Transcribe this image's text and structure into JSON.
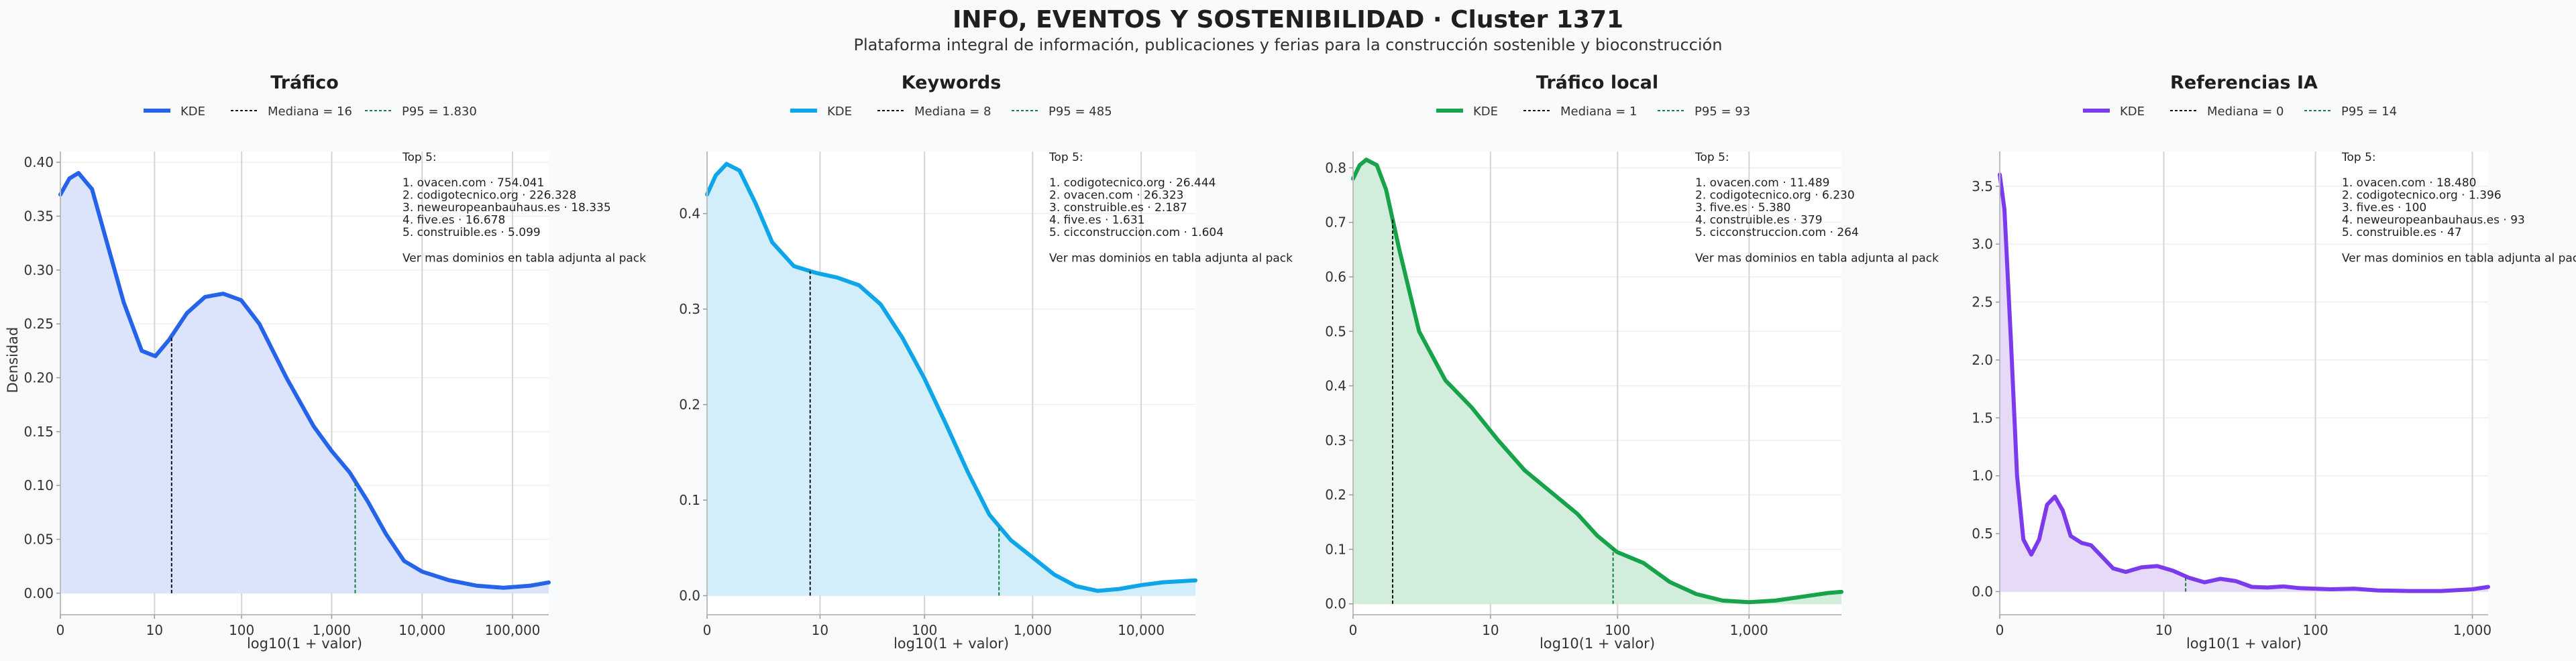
{
  "title": "INFO, EVENTOS Y SOSTENIBILIDAD · Cluster 1371",
  "subtitle": "Plataforma integral de información, publicaciones y ferias para la construcción sostenible y bioconstrucción",
  "ylabel_shared": "Densidad",
  "xlabel_shared": "log10(1 + valor)",
  "colors": {
    "trafico": "#2563eb",
    "keywords": "#0ea5e9",
    "trafico_local": "#16a34a",
    "referencias_ia": "#7c3aed",
    "median_line": "#111111",
    "p95_line": "#15803d",
    "grid": "#d4d4d4"
  },
  "chart_data": [
    {
      "type": "area",
      "title": "Tráfico",
      "legend": {
        "kde": "KDE",
        "median": "Mediana = 16",
        "p95": "P95 = 1.830",
        "placement": "top-center"
      },
      "xlabel": "log10(1 + valor)",
      "ylabel": "Densidad",
      "xlim": [
        0,
        5.4
      ],
      "ylim": [
        -0.02,
        0.41
      ],
      "xticks": [
        {
          "v": 0,
          "l": "0"
        },
        {
          "v": 1.041,
          "l": "10"
        },
        {
          "v": 2.004,
          "l": "100"
        },
        {
          "v": 3.0,
          "l": "1,000"
        },
        {
          "v": 4.0,
          "l": "10,000"
        },
        {
          "v": 5.0,
          "l": "100,000"
        }
      ],
      "yticks": [
        {
          "v": 0,
          "l": "0.00"
        },
        {
          "v": 0.05,
          "l": "0.05"
        },
        {
          "v": 0.1,
          "l": "0.10"
        },
        {
          "v": 0.15,
          "l": "0.15"
        },
        {
          "v": 0.2,
          "l": "0.20"
        },
        {
          "v": 0.25,
          "l": "0.25"
        },
        {
          "v": 0.3,
          "l": "0.30"
        },
        {
          "v": 0.35,
          "l": "0.35"
        },
        {
          "v": 0.4,
          "l": "0.40"
        }
      ],
      "median_x": 1.23,
      "p95_x": 3.26,
      "kde": [
        [
          0,
          0.37
        ],
        [
          0.1,
          0.385
        ],
        [
          0.2,
          0.39
        ],
        [
          0.35,
          0.375
        ],
        [
          0.5,
          0.33
        ],
        [
          0.7,
          0.27
        ],
        [
          0.9,
          0.225
        ],
        [
          1.05,
          0.22
        ],
        [
          1.2,
          0.235
        ],
        [
          1.4,
          0.26
        ],
        [
          1.6,
          0.275
        ],
        [
          1.8,
          0.278
        ],
        [
          2.0,
          0.272
        ],
        [
          2.2,
          0.25
        ],
        [
          2.5,
          0.2
        ],
        [
          2.8,
          0.155
        ],
        [
          3.0,
          0.132
        ],
        [
          3.2,
          0.112
        ],
        [
          3.4,
          0.085
        ],
        [
          3.6,
          0.055
        ],
        [
          3.8,
          0.03
        ],
        [
          4.0,
          0.02
        ],
        [
          4.3,
          0.012
        ],
        [
          4.6,
          0.007
        ],
        [
          4.9,
          0.005
        ],
        [
          5.2,
          0.007
        ],
        [
          5.4,
          0.01
        ]
      ],
      "top5": {
        "heading": "Top 5:",
        "items": [
          "1. ovacen.com · 754.041",
          "2. codigotecnico.org · 226.328",
          "3. neweuropeanbauhaus.es · 18.335",
          "4. five.es · 16.678",
          "5. construible.es · 5.099"
        ],
        "footer": "Ver mas dominios en tabla adjunta al pack"
      }
    },
    {
      "type": "area",
      "title": "Keywords",
      "legend": {
        "kde": "KDE",
        "median": "Mediana = 8",
        "p95": "P95 = 485",
        "placement": "top-center"
      },
      "xlabel": "log10(1 + valor)",
      "ylabel": "",
      "xlim": [
        0,
        4.5
      ],
      "ylim": [
        -0.02,
        0.465
      ],
      "xticks": [
        {
          "v": 0,
          "l": "0"
        },
        {
          "v": 1.041,
          "l": "10"
        },
        {
          "v": 2.004,
          "l": "100"
        },
        {
          "v": 3.0,
          "l": "1,000"
        },
        {
          "v": 4.0,
          "l": "10,000"
        }
      ],
      "yticks": [
        {
          "v": 0,
          "l": "0.0"
        },
        {
          "v": 0.1,
          "l": "0.1"
        },
        {
          "v": 0.2,
          "l": "0.2"
        },
        {
          "v": 0.3,
          "l": "0.3"
        },
        {
          "v": 0.4,
          "l": "0.4"
        }
      ],
      "median_x": 0.95,
      "p95_x": 2.69,
      "kde": [
        [
          0,
          0.42
        ],
        [
          0.08,
          0.44
        ],
        [
          0.18,
          0.452
        ],
        [
          0.3,
          0.445
        ],
        [
          0.45,
          0.41
        ],
        [
          0.6,
          0.37
        ],
        [
          0.8,
          0.345
        ],
        [
          1.0,
          0.338
        ],
        [
          1.2,
          0.333
        ],
        [
          1.4,
          0.325
        ],
        [
          1.6,
          0.305
        ],
        [
          1.8,
          0.27
        ],
        [
          2.0,
          0.228
        ],
        [
          2.2,
          0.18
        ],
        [
          2.4,
          0.13
        ],
        [
          2.6,
          0.085
        ],
        [
          2.8,
          0.058
        ],
        [
          3.0,
          0.04
        ],
        [
          3.2,
          0.022
        ],
        [
          3.4,
          0.01
        ],
        [
          3.6,
          0.005
        ],
        [
          3.8,
          0.007
        ],
        [
          4.0,
          0.011
        ],
        [
          4.2,
          0.014
        ],
        [
          4.5,
          0.016
        ]
      ],
      "top5": {
        "heading": "Top 5:",
        "items": [
          "1. codigotecnico.org · 26.444",
          "2. ovacen.com · 26.323",
          "3. construible.es · 2.187",
          "4. five.es · 1.631",
          "5. cicconstruccion.com · 1.604"
        ],
        "footer": "Ver mas dominios en tabla adjunta al pack"
      }
    },
    {
      "type": "area",
      "title": "Tráfico local",
      "legend": {
        "kde": "KDE",
        "median": "Mediana = 1",
        "p95": "P95 = 93",
        "placement": "top-center"
      },
      "xlabel": "log10(1 + valor)",
      "ylabel": "",
      "xlim": [
        0,
        3.7
      ],
      "ylim": [
        -0.02,
        0.83
      ],
      "xticks": [
        {
          "v": 0,
          "l": "0"
        },
        {
          "v": 1.041,
          "l": "10"
        },
        {
          "v": 2.004,
          "l": "100"
        },
        {
          "v": 3.0,
          "l": "1,000"
        }
      ],
      "yticks": [
        {
          "v": 0,
          "l": "0.0"
        },
        {
          "v": 0.1,
          "l": "0.1"
        },
        {
          "v": 0.2,
          "l": "0.2"
        },
        {
          "v": 0.3,
          "l": "0.3"
        },
        {
          "v": 0.4,
          "l": "0.4"
        },
        {
          "v": 0.5,
          "l": "0.5"
        },
        {
          "v": 0.6,
          "l": "0.6"
        },
        {
          "v": 0.7,
          "l": "0.7"
        },
        {
          "v": 0.8,
          "l": "0.8"
        }
      ],
      "median_x": 0.3,
      "p95_x": 1.97,
      "kde": [
        [
          0,
          0.78
        ],
        [
          0.05,
          0.805
        ],
        [
          0.1,
          0.815
        ],
        [
          0.18,
          0.805
        ],
        [
          0.25,
          0.76
        ],
        [
          0.35,
          0.65
        ],
        [
          0.5,
          0.5
        ],
        [
          0.7,
          0.41
        ],
        [
          0.9,
          0.36
        ],
        [
          1.1,
          0.3
        ],
        [
          1.3,
          0.245
        ],
        [
          1.5,
          0.205
        ],
        [
          1.7,
          0.165
        ],
        [
          1.85,
          0.125
        ],
        [
          2.0,
          0.095
        ],
        [
          2.2,
          0.075
        ],
        [
          2.4,
          0.04
        ],
        [
          2.6,
          0.018
        ],
        [
          2.8,
          0.006
        ],
        [
          3.0,
          0.003
        ],
        [
          3.2,
          0.006
        ],
        [
          3.4,
          0.013
        ],
        [
          3.6,
          0.02
        ],
        [
          3.7,
          0.022
        ]
      ],
      "top5": {
        "heading": "Top 5:",
        "items": [
          "1. ovacen.com · 11.489",
          "2. codigotecnico.org · 6.230",
          "3. five.es · 5.380",
          "4. construible.es · 379",
          "5. cicconstruccion.com · 264"
        ],
        "footer": "Ver mas dominios en tabla adjunta al pack"
      }
    },
    {
      "type": "area",
      "title": "Referencias IA",
      "legend": {
        "kde": "KDE",
        "median": "Mediana = 0",
        "p95": "P95 = 14",
        "placement": "top-center"
      },
      "xlabel": "log10(1 + valor)",
      "ylabel": "",
      "xlim": [
        0,
        3.1
      ],
      "ylim": [
        -0.2,
        3.8
      ],
      "xticks": [
        {
          "v": 0,
          "l": "0"
        },
        {
          "v": 1.041,
          "l": "10"
        },
        {
          "v": 2.004,
          "l": "100"
        },
        {
          "v": 3.0,
          "l": "1,000"
        }
      ],
      "yticks": [
        {
          "v": 0,
          "l": "0.0"
        },
        {
          "v": 0.5,
          "l": "0.5"
        },
        {
          "v": 1.0,
          "l": "1.0"
        },
        {
          "v": 1.5,
          "l": "1.5"
        },
        {
          "v": 2.0,
          "l": "2.0"
        },
        {
          "v": 2.5,
          "l": "2.5"
        },
        {
          "v": 3.0,
          "l": "3.0"
        },
        {
          "v": 3.5,
          "l": "3.5"
        }
      ],
      "median_x": 0,
      "p95_x": 1.18,
      "kde": [
        [
          0,
          3.6
        ],
        [
          0.03,
          3.3
        ],
        [
          0.07,
          2.2
        ],
        [
          0.11,
          1.0
        ],
        [
          0.15,
          0.45
        ],
        [
          0.2,
          0.32
        ],
        [
          0.25,
          0.45
        ],
        [
          0.3,
          0.75
        ],
        [
          0.35,
          0.82
        ],
        [
          0.4,
          0.7
        ],
        [
          0.45,
          0.48
        ],
        [
          0.52,
          0.42
        ],
        [
          0.58,
          0.4
        ],
        [
          0.65,
          0.3
        ],
        [
          0.72,
          0.2
        ],
        [
          0.8,
          0.17
        ],
        [
          0.9,
          0.21
        ],
        [
          1.0,
          0.22
        ],
        [
          1.1,
          0.18
        ],
        [
          1.2,
          0.12
        ],
        [
          1.3,
          0.08
        ],
        [
          1.4,
          0.11
        ],
        [
          1.5,
          0.09
        ],
        [
          1.6,
          0.04
        ],
        [
          1.7,
          0.035
        ],
        [
          1.8,
          0.045
        ],
        [
          1.9,
          0.03
        ],
        [
          2.0,
          0.025
        ],
        [
          2.1,
          0.02
        ],
        [
          2.25,
          0.025
        ],
        [
          2.4,
          0.01
        ],
        [
          2.6,
          0.005
        ],
        [
          2.8,
          0.005
        ],
        [
          3.0,
          0.02
        ],
        [
          3.1,
          0.04
        ]
      ],
      "top5": {
        "heading": "Top 5:",
        "items": [
          "1. ovacen.com · 18.480",
          "2. codigotecnico.org · 1.396",
          "3. five.es · 100",
          "4. neweuropeanbauhaus.es · 93",
          "5. construible.es · 47"
        ],
        "footer": "Ver mas dominios en tabla adjunta al pack"
      }
    }
  ]
}
